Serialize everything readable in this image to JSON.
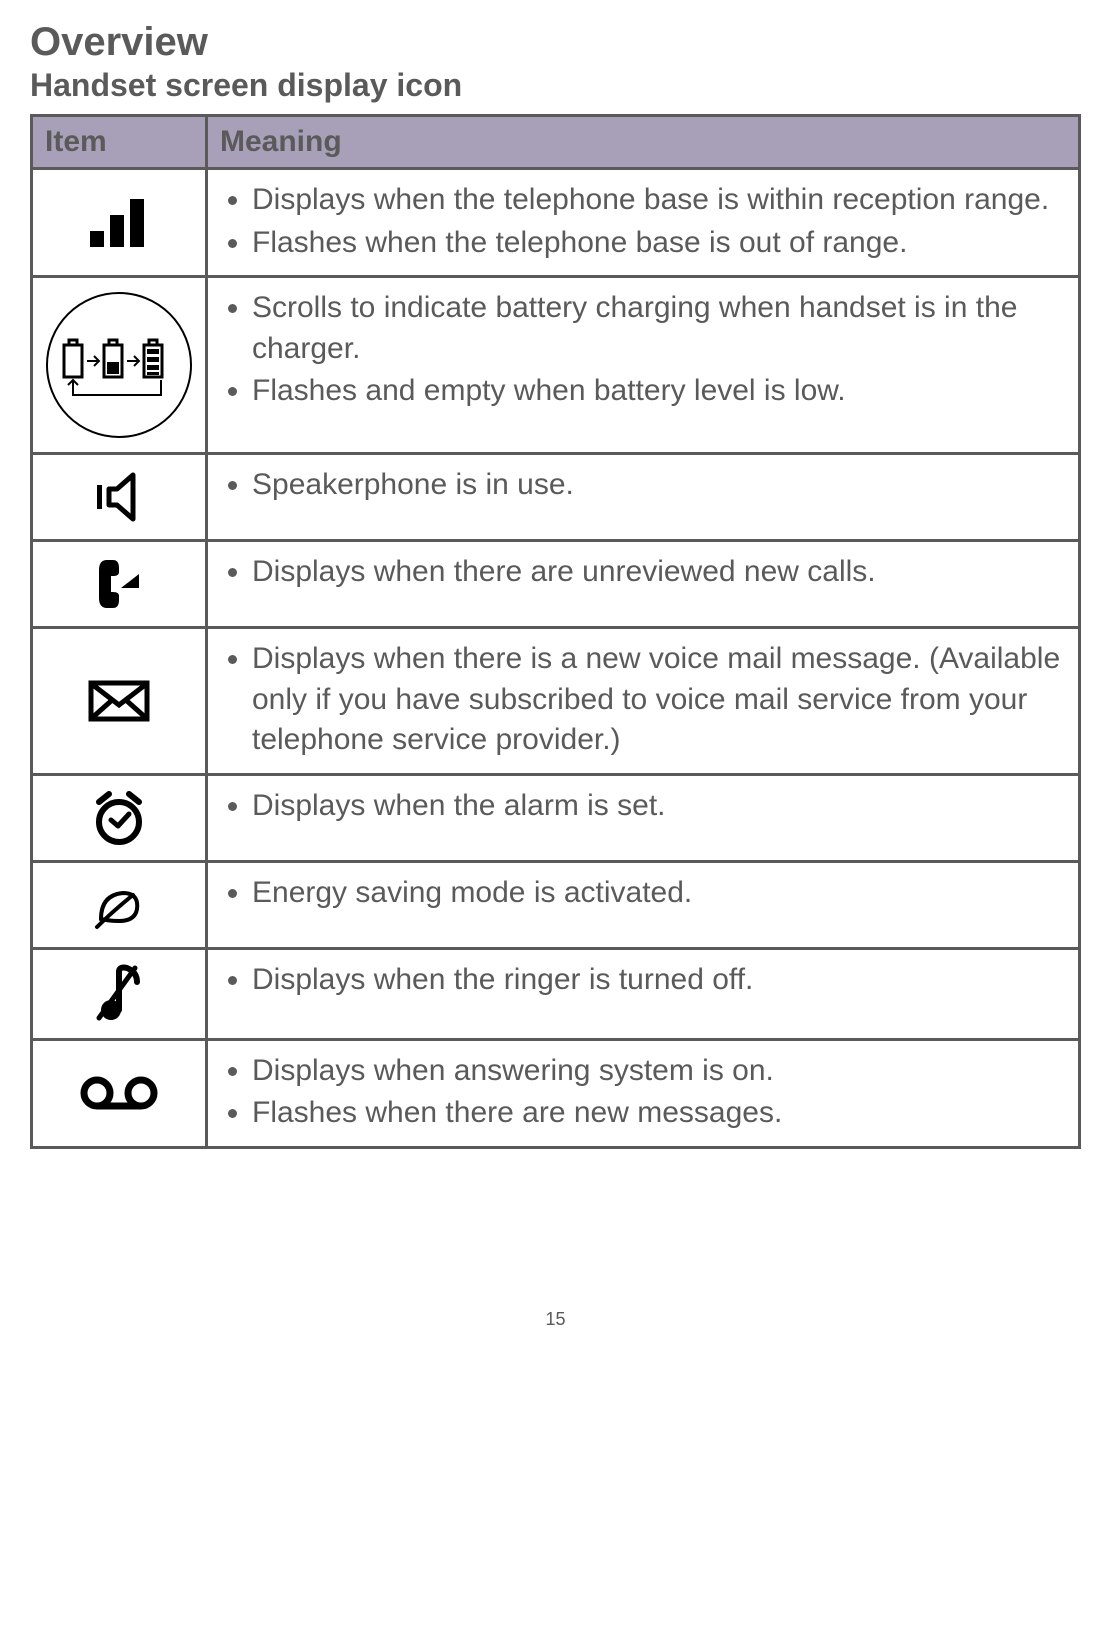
{
  "title": "Overview",
  "subtitle": "Handset screen display icon",
  "table": {
    "header_item": "Item",
    "header_meaning": "Meaning",
    "rows": [
      {
        "icon": "signal",
        "points": [
          "Displays when the telephone base is within reception range.",
          "Flashes when the telephone base is out of range."
        ]
      },
      {
        "icon": "battery",
        "points": [
          "Scrolls to indicate battery charging when handset is in the charger.",
          "Flashes and empty when battery level is low."
        ]
      },
      {
        "icon": "speaker",
        "points": [
          "Speakerphone is in use."
        ]
      },
      {
        "icon": "missed-call",
        "points": [
          "Displays when there are unreviewed new calls."
        ]
      },
      {
        "icon": "voicemail-envelope",
        "points": [
          "Displays when there is a new voice mail message. (Available only if you have subscribed to voice mail service from your telephone service provider.)"
        ]
      },
      {
        "icon": "alarm",
        "points": [
          "Displays when the alarm is set."
        ]
      },
      {
        "icon": "eco",
        "points": [
          "Energy saving mode is activated."
        ]
      },
      {
        "icon": "ringer-off",
        "points": [
          "Displays when the ringer is turned off."
        ]
      },
      {
        "icon": "answering-machine",
        "points": [
          "Displays when answering system is on.",
          "Flashes when there are new messages."
        ]
      }
    ]
  },
  "page_number": "15",
  "colors": {
    "text": "#5a5a5a",
    "header_bg": "#a8a0b8",
    "border": "#5a5a5a",
    "icon": "#000000"
  }
}
